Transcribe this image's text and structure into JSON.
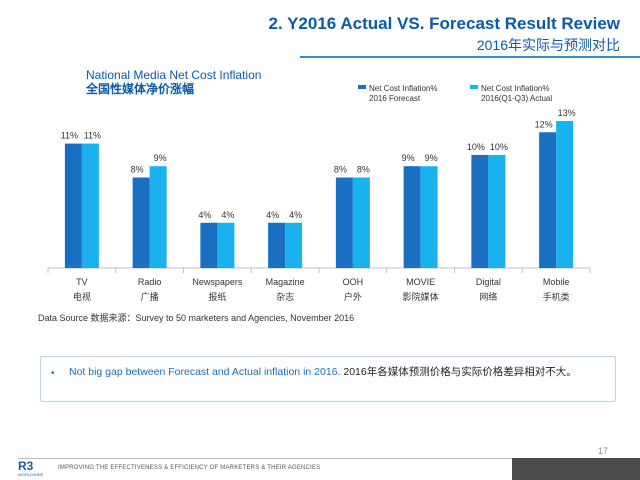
{
  "header": {
    "title_en": "2. Y2016 Actual VS. Forecast Result Review",
    "title_cn": "2016年实际与预测对比"
  },
  "chart_title": {
    "en": "National Media Net Cost Inflation",
    "cn": "全国性媒体净价涨幅"
  },
  "legend": [
    {
      "line1": "Net Cost Inflation%",
      "line2": "2016 Forecast",
      "color": "#1a6fc0"
    },
    {
      "line1": "Net Cost Inflation%",
      "line2": "2016(Q1-Q3) Actual",
      "color": "#1ab1ef"
    }
  ],
  "chart_data": {
    "type": "bar",
    "title": "National Media Net Cost Inflation",
    "categories": [
      {
        "en": "TV",
        "cn": "电视"
      },
      {
        "en": "Radio",
        "cn": "广播"
      },
      {
        "en": "Newspapers",
        "cn": "报纸"
      },
      {
        "en": "Magazine",
        "cn": "杂志"
      },
      {
        "en": "OOH",
        "cn": "户外"
      },
      {
        "en": "MOVIE",
        "cn": "影院媒体"
      },
      {
        "en": "Digital",
        "cn": "网络"
      },
      {
        "en": "Mobile",
        "cn": "手机类"
      }
    ],
    "series": [
      {
        "name": "Net Cost Inflation% 2016 Forecast",
        "values": [
          11,
          8,
          4,
          4,
          8,
          9,
          10,
          12
        ],
        "labels": [
          "11%",
          "8%",
          "4%",
          "4%",
          "8%",
          "9%",
          "10%",
          "12%"
        ],
        "color": "#1a6fc0"
      },
      {
        "name": "Net Cost Inflation% 2016(Q1-Q3) Actual",
        "values": [
          11,
          9,
          4,
          4,
          8,
          9,
          10,
          13
        ],
        "labels": [
          "11%",
          "9%",
          "4%",
          "4%",
          "8%",
          "9%",
          "10%",
          "13%"
        ],
        "color": "#1ab1ef"
      }
    ],
    "ylim": [
      0,
      14.5
    ],
    "grid": false
  },
  "source": "Data Source 数据来源：Survey to 50 marketers and Agencies, November 2016",
  "note": {
    "bullet": "•",
    "en": "Not big gap between Forecast and Actual inflation in 2016. ",
    "cn": "2016年各媒体预测价格与实际价格差异相对不大。"
  },
  "footer": {
    "page_number": "17",
    "logo_main": "R3",
    "logo_sub": "WORLDWIDE",
    "tagline": "IMPROVING THE EFFECTIVENESS & EFFICIENCY OF MARKETERS & THEIR AGENCIES"
  }
}
